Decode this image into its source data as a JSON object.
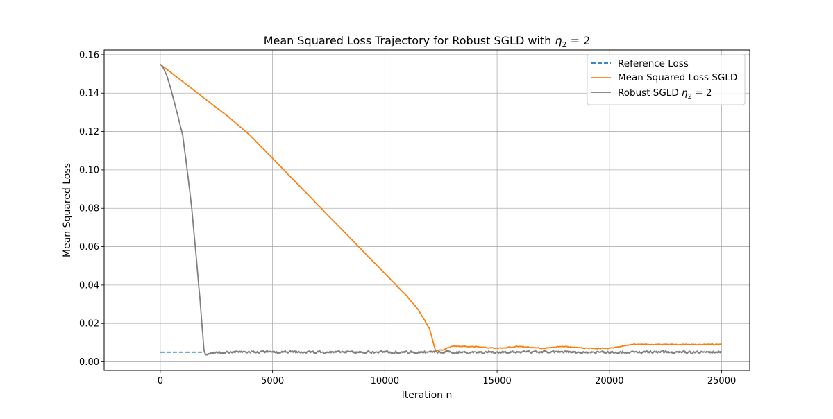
{
  "chart_data": {
    "type": "line",
    "title": "Mean Squared Loss Trajectory for Robust SGLD with η₂ = 2",
    "xlabel": "Iteration n",
    "ylabel": "Mean Squared Loss",
    "xlim": [
      -2500,
      26250
    ],
    "ylim": [
      -0.0045,
      0.1625
    ],
    "xticks": [
      0,
      5000,
      10000,
      15000,
      20000,
      25000
    ],
    "xtick_labels": [
      "0",
      "5000",
      "10000",
      "15000",
      "20000",
      "25000"
    ],
    "yticks": [
      0.0,
      0.02,
      0.04,
      0.06,
      0.08,
      0.1,
      0.12,
      0.14,
      0.16
    ],
    "ytick_labels": [
      "0.00",
      "0.02",
      "0.04",
      "0.06",
      "0.08",
      "0.10",
      "0.12",
      "0.14",
      "0.16"
    ],
    "grid": true,
    "legend_position": "top-right",
    "series": [
      {
        "name": "Reference Loss",
        "color": "#1f77b4",
        "style": "dashed",
        "x": [
          0,
          2000
        ],
        "y": [
          0.005,
          0.005
        ]
      },
      {
        "name": "Mean Squared Loss SGLD",
        "color": "#ff7f0e",
        "style": "solid",
        "noise": 0.0004,
        "x": [
          0,
          1000,
          2000,
          3000,
          4000,
          5000,
          6000,
          7000,
          8000,
          9000,
          10000,
          11000,
          11500,
          12000,
          12250,
          12500,
          13000,
          14000,
          15000,
          16000,
          17000,
          18000,
          19000,
          20000,
          21000,
          22000,
          23000,
          24000,
          25000
        ],
        "y": [
          0.155,
          0.146,
          0.137,
          0.128,
          0.118,
          0.106,
          0.094,
          0.082,
          0.07,
          0.058,
          0.046,
          0.034,
          0.027,
          0.017,
          0.006,
          0.006,
          0.008,
          0.008,
          0.007,
          0.008,
          0.007,
          0.008,
          0.007,
          0.007,
          0.009,
          0.009,
          0.009,
          0.009,
          0.009
        ]
      },
      {
        "name": "Robust SGLD η₂ = 2",
        "label_main": "Robust SGLD ",
        "label_sym": "η",
        "label_sub": "2",
        "label_tail": " = 2",
        "color": "#7f7f7f",
        "style": "solid",
        "noise": 0.0012,
        "x": [
          0,
          100,
          300,
          500,
          700,
          1000,
          1200,
          1400,
          1600,
          1800,
          1950,
          2000,
          3000,
          4000,
          5000,
          6000,
          7000,
          8000,
          9000,
          10000,
          11000,
          12000,
          13000,
          14000,
          15000,
          16000,
          17000,
          18000,
          19000,
          20000,
          21000,
          22000,
          23000,
          24000,
          25000
        ],
        "y": [
          0.155,
          0.154,
          0.149,
          0.141,
          0.132,
          0.118,
          0.1,
          0.08,
          0.055,
          0.028,
          0.006,
          0.004,
          0.005,
          0.005,
          0.005,
          0.005,
          0.005,
          0.005,
          0.005,
          0.005,
          0.005,
          0.005,
          0.005,
          0.005,
          0.005,
          0.005,
          0.005,
          0.005,
          0.005,
          0.005,
          0.005,
          0.005,
          0.005,
          0.005,
          0.005
        ]
      }
    ]
  }
}
